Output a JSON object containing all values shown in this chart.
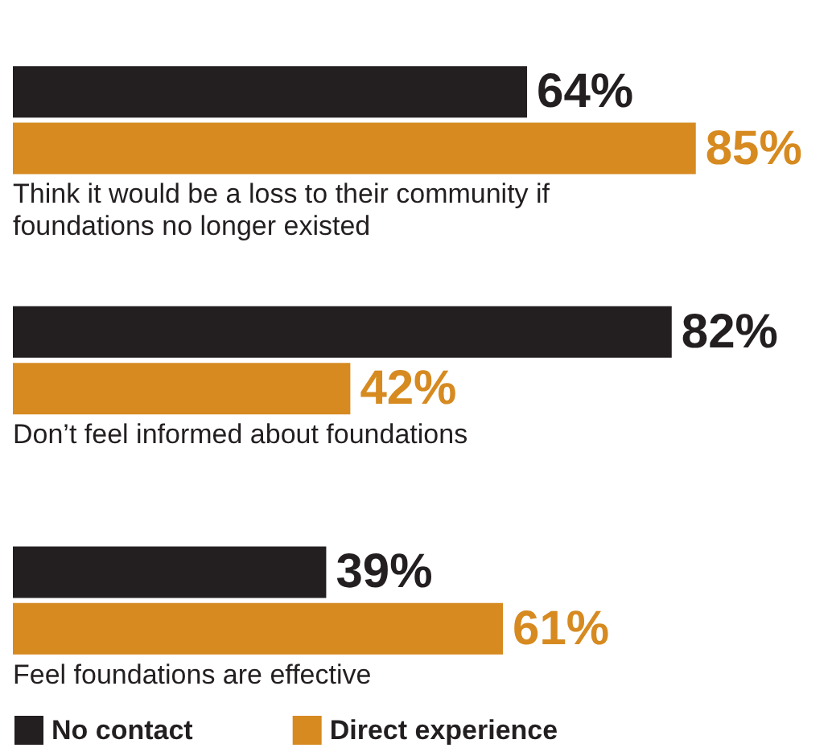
{
  "chart_data": {
    "type": "bar",
    "orientation": "horizontal",
    "categories": [
      "Think it would be a loss to their community if foundations no longer existed",
      "Don’t feel informed about foundations",
      "Feel foundations are effective"
    ],
    "series": [
      {
        "name": "No contact",
        "color": "#231f20",
        "values": [
          64,
          82,
          39
        ],
        "value_labels": [
          "64%",
          "82%",
          "39%"
        ]
      },
      {
        "name": "Direct experience",
        "color": "#d68a20",
        "values": [
          85,
          42,
          61
        ],
        "value_labels": [
          "85%",
          "42%",
          "61%"
        ]
      }
    ],
    "legend": "bottom left"
  }
}
